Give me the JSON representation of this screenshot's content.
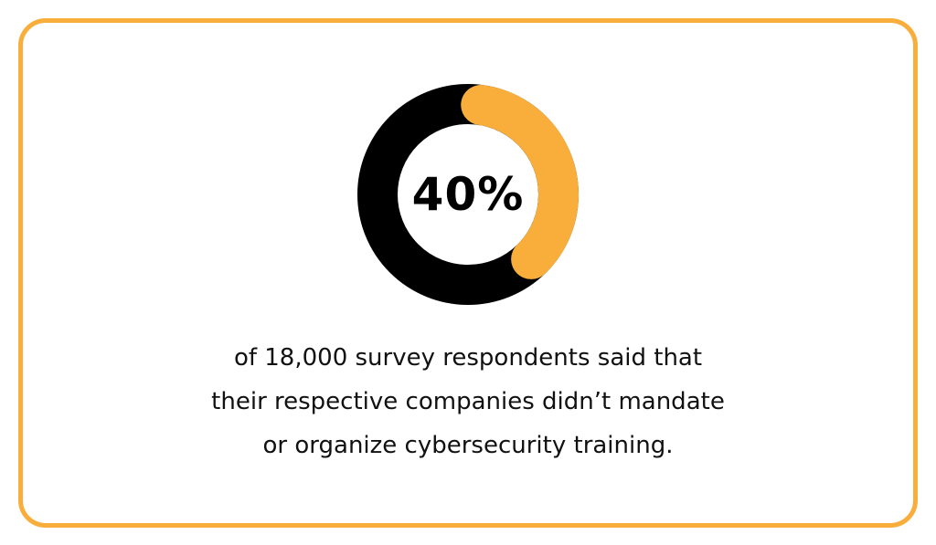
{
  "chart_data": {
    "type": "pie",
    "variant": "donut",
    "values": [
      40,
      60
    ],
    "center_label": "40%",
    "colors": {
      "highlight": "#f9ae3b",
      "remainder": "#000000",
      "border": "#f9ae3b"
    }
  },
  "caption": {
    "lines": [
      "of 18,000 survey respondents said that",
      "their respective companies didn’t mandate",
      "or organize cybersecurity training."
    ]
  }
}
